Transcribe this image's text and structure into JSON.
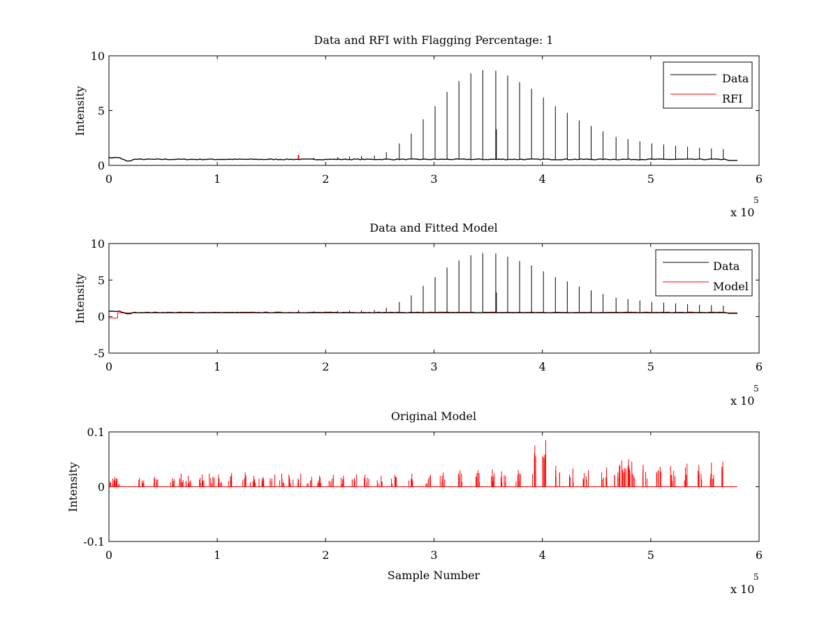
{
  "figure": {
    "background": "#ffffff",
    "colors": {
      "data": "#000000",
      "rfi": "#ff0000",
      "model": "#ff0000",
      "axes": "#000000"
    }
  },
  "chart_data": [
    {
      "type": "line",
      "title": "Data and RFI with Flagging Percentage: 1",
      "xlabel": "",
      "ylabel": "Intensity",
      "xlim": [
        0,
        600000
      ],
      "ylim": [
        0,
        10
      ],
      "x_exponent_label": "x 10",
      "x_exponent_power": "5",
      "xticks": [
        {
          "v": 0,
          "label": "0"
        },
        {
          "v": 100000,
          "label": "1"
        },
        {
          "v": 200000,
          "label": "2"
        },
        {
          "v": 300000,
          "label": "3"
        },
        {
          "v": 400000,
          "label": "4"
        },
        {
          "v": 500000,
          "label": "5"
        },
        {
          "v": 600000,
          "label": "6"
        }
      ],
      "yticks": [
        {
          "v": 0,
          "label": "0"
        },
        {
          "v": 5,
          "label": "5"
        },
        {
          "v": 10,
          "label": "10"
        }
      ],
      "legend": "top-right",
      "grid": false,
      "baseline": 0.55,
      "spikes": [
        {
          "x": 175000,
          "y": 0.9
        },
        {
          "x": 189000,
          "y": 0.7
        },
        {
          "x": 200000,
          "y": 0.6
        },
        {
          "x": 211000,
          "y": 0.75
        },
        {
          "x": 222000,
          "y": 0.8
        },
        {
          "x": 233000,
          "y": 0.85
        },
        {
          "x": 245000,
          "y": 0.9
        },
        {
          "x": 256000,
          "y": 1.2
        },
        {
          "x": 268000,
          "y": 2.0
        },
        {
          "x": 279000,
          "y": 2.9
        },
        {
          "x": 290000,
          "y": 4.2
        },
        {
          "x": 301000,
          "y": 5.4
        },
        {
          "x": 312000,
          "y": 6.7
        },
        {
          "x": 323000,
          "y": 7.7
        },
        {
          "x": 334000,
          "y": 8.4
        },
        {
          "x": 345000,
          "y": 8.7
        },
        {
          "x": 357000,
          "y": 8.65
        },
        {
          "x": 368000,
          "y": 8.2
        },
        {
          "x": 379000,
          "y": 7.6
        },
        {
          "x": 390000,
          "y": 7.0
        },
        {
          "x": 401000,
          "y": 6.2
        },
        {
          "x": 412000,
          "y": 5.4
        },
        {
          "x": 423000,
          "y": 4.8
        },
        {
          "x": 434000,
          "y": 4.1
        },
        {
          "x": 445000,
          "y": 3.6
        },
        {
          "x": 456000,
          "y": 3.1
        },
        {
          "x": 468000,
          "y": 2.6
        },
        {
          "x": 479000,
          "y": 2.4
        },
        {
          "x": 490000,
          "y": 2.2
        },
        {
          "x": 501000,
          "y": 2.0
        },
        {
          "x": 512000,
          "y": 1.9
        },
        {
          "x": 523000,
          "y": 1.8
        },
        {
          "x": 534000,
          "y": 1.7
        },
        {
          "x": 545000,
          "y": 1.6
        },
        {
          "x": 556000,
          "y": 1.55
        },
        {
          "x": 567000,
          "y": 1.5
        }
      ],
      "series": [
        {
          "name": "Data",
          "color": "#000000"
        },
        {
          "name": "RFI",
          "color": "#ff0000",
          "x": [
            175000
          ],
          "y": [
            0.95
          ]
        }
      ]
    },
    {
      "type": "line",
      "title": "Data and Fitted Model",
      "xlabel": "",
      "ylabel": "Intensity",
      "xlim": [
        0,
        600000
      ],
      "ylim": [
        -5,
        10
      ],
      "x_exponent_label": "x 10",
      "x_exponent_power": "5",
      "xticks": [
        {
          "v": 0,
          "label": "0"
        },
        {
          "v": 100000,
          "label": "1"
        },
        {
          "v": 200000,
          "label": "2"
        },
        {
          "v": 300000,
          "label": "3"
        },
        {
          "v": 400000,
          "label": "4"
        },
        {
          "v": 500000,
          "label": "5"
        },
        {
          "v": 600000,
          "label": "6"
        }
      ],
      "yticks": [
        {
          "v": -5,
          "label": "-5"
        },
        {
          "v": 0,
          "label": "0"
        },
        {
          "v": 5,
          "label": "5"
        },
        {
          "v": 10,
          "label": "10"
        }
      ],
      "legend": "top-right",
      "grid": false,
      "baseline": 0.55,
      "spikes": [
        {
          "x": 175000,
          "y": 0.9
        },
        {
          "x": 189000,
          "y": 0.7
        },
        {
          "x": 200000,
          "y": 0.6
        },
        {
          "x": 211000,
          "y": 0.75
        },
        {
          "x": 222000,
          "y": 0.8
        },
        {
          "x": 233000,
          "y": 0.85
        },
        {
          "x": 245000,
          "y": 0.9
        },
        {
          "x": 256000,
          "y": 1.2
        },
        {
          "x": 268000,
          "y": 2.0
        },
        {
          "x": 279000,
          "y": 2.9
        },
        {
          "x": 290000,
          "y": 4.2
        },
        {
          "x": 301000,
          "y": 5.4
        },
        {
          "x": 312000,
          "y": 6.7
        },
        {
          "x": 323000,
          "y": 7.7
        },
        {
          "x": 334000,
          "y": 8.4
        },
        {
          "x": 345000,
          "y": 8.7
        },
        {
          "x": 357000,
          "y": 8.65
        },
        {
          "x": 368000,
          "y": 8.2
        },
        {
          "x": 379000,
          "y": 7.6
        },
        {
          "x": 390000,
          "y": 7.0
        },
        {
          "x": 401000,
          "y": 6.2
        },
        {
          "x": 412000,
          "y": 5.4
        },
        {
          "x": 423000,
          "y": 4.8
        },
        {
          "x": 434000,
          "y": 4.1
        },
        {
          "x": 445000,
          "y": 3.6
        },
        {
          "x": 456000,
          "y": 3.1
        },
        {
          "x": 468000,
          "y": 2.6
        },
        {
          "x": 479000,
          "y": 2.4
        },
        {
          "x": 490000,
          "y": 2.2
        },
        {
          "x": 501000,
          "y": 2.0
        },
        {
          "x": 512000,
          "y": 1.9
        },
        {
          "x": 523000,
          "y": 1.8
        },
        {
          "x": 534000,
          "y": 1.7
        },
        {
          "x": 545000,
          "y": 1.6
        },
        {
          "x": 556000,
          "y": 1.55
        },
        {
          "x": 567000,
          "y": 1.5
        }
      ],
      "series": [
        {
          "name": "Data",
          "color": "#000000"
        },
        {
          "name": "Model",
          "color": "#ff0000",
          "level": 0.5,
          "start_dip": -0.2
        }
      ]
    },
    {
      "type": "line",
      "title": "Original Model",
      "xlabel": "Sample Number",
      "ylabel": "Intensity",
      "xlim": [
        0,
        600000
      ],
      "ylim": [
        -0.1,
        0.1
      ],
      "x_exponent_label": "x 10",
      "x_exponent_power": "5",
      "xticks": [
        {
          "v": 0,
          "label": "0"
        },
        {
          "v": 100000,
          "label": "1"
        },
        {
          "v": 200000,
          "label": "2"
        },
        {
          "v": 300000,
          "label": "3"
        },
        {
          "v": 400000,
          "label": "4"
        },
        {
          "v": 500000,
          "label": "5"
        },
        {
          "v": 600000,
          "label": "6"
        }
      ],
      "yticks": [
        {
          "v": -0.1,
          "label": "-0.1"
        },
        {
          "v": 0,
          "label": "0"
        },
        {
          "v": 0.1,
          "label": "0.1"
        }
      ],
      "legend": "none",
      "grid": false,
      "series": [
        {
          "name": "",
          "color": "#ff0000",
          "peaks": [
            {
              "x": 2000,
              "y": 0.015
            },
            {
              "x": 5000,
              "y": 0.018
            },
            {
              "x": 8000,
              "y": 0.015
            },
            {
              "x": 30000,
              "y": 0.016
            },
            {
              "x": 44000,
              "y": 0.018
            },
            {
              "x": 58000,
              "y": 0.016
            },
            {
              "x": 66000,
              "y": 0.024
            },
            {
              "x": 73000,
              "y": 0.02
            },
            {
              "x": 86000,
              "y": 0.022
            },
            {
              "x": 95000,
              "y": 0.024
            },
            {
              "x": 103000,
              "y": 0.022
            },
            {
              "x": 112000,
              "y": 0.025
            },
            {
              "x": 124000,
              "y": 0.026
            },
            {
              "x": 133000,
              "y": 0.02
            },
            {
              "x": 141000,
              "y": 0.018
            },
            {
              "x": 151000,
              "y": 0.022
            },
            {
              "x": 160000,
              "y": 0.024
            },
            {
              "x": 168000,
              "y": 0.022
            },
            {
              "x": 176000,
              "y": 0.024
            },
            {
              "x": 185000,
              "y": 0.018
            },
            {
              "x": 195000,
              "y": 0.02
            },
            {
              "x": 205000,
              "y": 0.022
            },
            {
              "x": 215000,
              "y": 0.02
            },
            {
              "x": 227000,
              "y": 0.023
            },
            {
              "x": 238000,
              "y": 0.022
            },
            {
              "x": 250000,
              "y": 0.02
            },
            {
              "x": 263000,
              "y": 0.022
            },
            {
              "x": 279000,
              "y": 0.024
            },
            {
              "x": 295000,
              "y": 0.022
            },
            {
              "x": 308000,
              "y": 0.026
            },
            {
              "x": 325000,
              "y": 0.03
            },
            {
              "x": 340000,
              "y": 0.03
            },
            {
              "x": 355000,
              "y": 0.032
            },
            {
              "x": 364000,
              "y": 0.028
            },
            {
              "x": 378000,
              "y": 0.03
            },
            {
              "x": 393000,
              "y": 0.075
            },
            {
              "x": 401000,
              "y": 0.085
            },
            {
              "x": 414000,
              "y": 0.038
            },
            {
              "x": 427000,
              "y": 0.033
            },
            {
              "x": 440000,
              "y": 0.03
            },
            {
              "x": 457000,
              "y": 0.035
            },
            {
              "x": 469000,
              "y": 0.038
            },
            {
              "x": 474000,
              "y": 0.048
            },
            {
              "x": 478000,
              "y": 0.05
            },
            {
              "x": 483000,
              "y": 0.046
            },
            {
              "x": 495000,
              "y": 0.04
            },
            {
              "x": 507000,
              "y": 0.036
            },
            {
              "x": 520000,
              "y": 0.038
            },
            {
              "x": 532000,
              "y": 0.042
            },
            {
              "x": 545000,
              "y": 0.04
            },
            {
              "x": 556000,
              "y": 0.044
            },
            {
              "x": 566000,
              "y": 0.046
            }
          ]
        }
      ]
    }
  ]
}
